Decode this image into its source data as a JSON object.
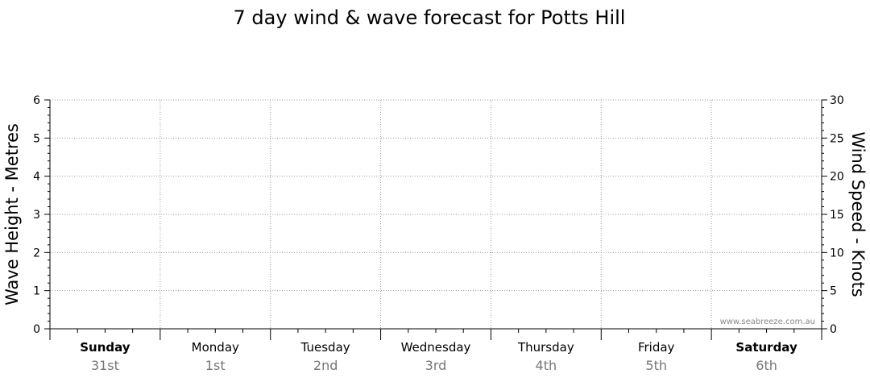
{
  "chart_data": {
    "type": "line",
    "title": "7 day wind & wave forecast for Potts Hill",
    "y_left_label": "Wave Height - Metres",
    "y_right_label": "Wind Speed - Knots",
    "y_left_range": [
      0,
      6
    ],
    "y_left_ticks": [
      "0",
      "1",
      "2",
      "3",
      "4",
      "5",
      "6"
    ],
    "y_right_range": [
      0,
      30
    ],
    "y_right_ticks": [
      "0",
      "5",
      "10",
      "15",
      "20",
      "25",
      "30"
    ],
    "days": [
      {
        "day": "Sunday",
        "date": "31st",
        "bold": true
      },
      {
        "day": "Monday",
        "date": "1st",
        "bold": false
      },
      {
        "day": "Tuesday",
        "date": "2nd",
        "bold": false
      },
      {
        "day": "Wednesday",
        "date": "3rd",
        "bold": false
      },
      {
        "day": "Thursday",
        "date": "4th",
        "bold": false
      },
      {
        "day": "Friday",
        "date": "5th",
        "bold": false
      },
      {
        "day": "Saturday",
        "date": "6th",
        "bold": true
      }
    ],
    "series": [],
    "grid": true,
    "watermark": "www.seabreeze.com.au",
    "colors": {
      "grid": "#999999",
      "axis": "#000000",
      "date": "#777777",
      "watermark": "#888888"
    }
  }
}
